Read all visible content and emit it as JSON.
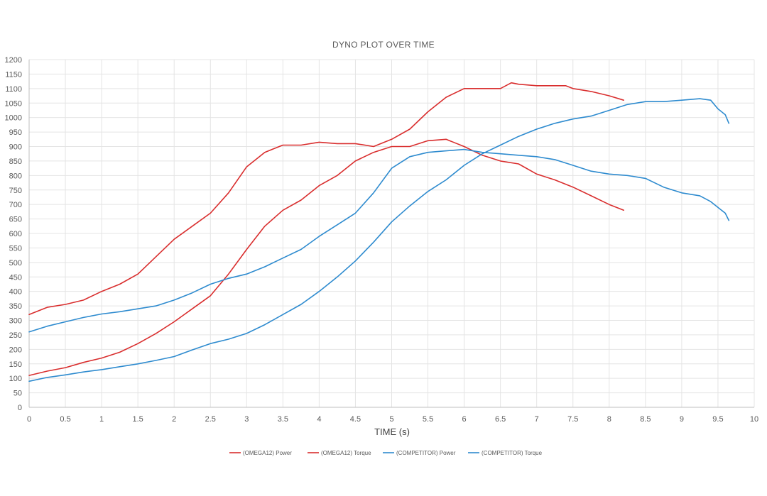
{
  "chart_data": {
    "type": "line",
    "title": "DYNO PLOT OVER TIME",
    "xlabel": "TIME (s)",
    "ylabel": "",
    "xlim": [
      0,
      10
    ],
    "ylim": [
      0,
      1200
    ],
    "x_ticks": [
      0,
      0.5,
      1,
      1.5,
      2,
      2.5,
      3,
      3.5,
      4,
      4.5,
      5,
      5.5,
      6,
      6.5,
      7,
      7.5,
      8,
      8.5,
      9,
      9.5,
      10
    ],
    "x_tick_labels": [
      "0",
      "0.5",
      "1",
      "1.5",
      "2",
      "2.5",
      "3",
      "3.5",
      "4",
      "4.5",
      "5",
      "5.5",
      "6",
      "6.5",
      "7",
      "7.5",
      "8",
      "8.5",
      "9",
      "9.5",
      "10"
    ],
    "y_ticks": [
      0,
      50,
      100,
      150,
      200,
      250,
      300,
      350,
      400,
      450,
      500,
      550,
      600,
      650,
      700,
      750,
      800,
      850,
      900,
      950,
      1000,
      1050,
      1100,
      1150,
      1200
    ],
    "y_tick_labels": [
      "0",
      "50",
      "100",
      "150",
      "200",
      "250",
      "300",
      "350",
      "400",
      "450",
      "500",
      "550",
      "600",
      "650",
      "700",
      "750",
      "800",
      "850",
      "900",
      "950",
      "1000",
      "1050",
      "1100",
      "1150",
      "1200"
    ],
    "grid": true,
    "legend_position": "bottom",
    "series": [
      {
        "name": "(OMEGA12) Power",
        "color": "#d92e2e",
        "x": [
          0,
          0.25,
          0.5,
          0.75,
          1,
          1.25,
          1.5,
          1.75,
          2,
          2.25,
          2.5,
          2.75,
          3,
          3.25,
          3.5,
          3.75,
          4,
          4.25,
          4.5,
          4.75,
          5,
          5.25,
          5.5,
          5.75,
          6,
          6.25,
          6.5,
          6.75,
          7,
          7.25,
          7.5,
          7.75,
          8,
          8.2
        ],
        "y": [
          110,
          125,
          137,
          155,
          170,
          190,
          220,
          255,
          295,
          340,
          385,
          460,
          545,
          625,
          680,
          715,
          765,
          800,
          850,
          880,
          900,
          900,
          920,
          925,
          900,
          870,
          850,
          840,
          805,
          785,
          760,
          730,
          700,
          680
        ]
      },
      {
        "name": "(OMEGA12) Torque",
        "color": "#d92e2e",
        "x": [
          0,
          0.25,
          0.5,
          0.75,
          1,
          1.25,
          1.5,
          1.75,
          2,
          2.25,
          2.5,
          2.75,
          3,
          3.25,
          3.5,
          3.75,
          4,
          4.25,
          4.5,
          4.75,
          5,
          5.25,
          5.5,
          5.75,
          6,
          6.25,
          6.5,
          6.65,
          6.75,
          7,
          7.25,
          7.4,
          7.5,
          7.75,
          8,
          8.2
        ],
        "y": [
          320,
          345,
          355,
          370,
          400,
          425,
          460,
          520,
          580,
          625,
          670,
          740,
          830,
          880,
          905,
          905,
          915,
          910,
          910,
          900,
          925,
          960,
          1020,
          1070,
          1100,
          1100,
          1100,
          1120,
          1115,
          1110,
          1110,
          1110,
          1100,
          1090,
          1075,
          1060
        ]
      },
      {
        "name": "(COMPETITOR) Power",
        "color": "#2e8bcf",
        "x": [
          0,
          0.25,
          0.5,
          0.75,
          1,
          1.25,
          1.5,
          1.75,
          2,
          2.25,
          2.5,
          2.75,
          3,
          3.25,
          3.5,
          3.75,
          4,
          4.25,
          4.5,
          4.75,
          5,
          5.25,
          5.5,
          5.75,
          6,
          6.25,
          6.5,
          6.75,
          7,
          7.25,
          7.5,
          7.75,
          8,
          8.25,
          8.5,
          8.75,
          9,
          9.25,
          9.4,
          9.5,
          9.6,
          9.65
        ],
        "y": [
          90,
          103,
          112,
          122,
          130,
          140,
          150,
          162,
          175,
          198,
          220,
          235,
          255,
          285,
          320,
          355,
          400,
          450,
          505,
          570,
          640,
          695,
          745,
          785,
          835,
          875,
          905,
          935,
          960,
          980,
          995,
          1005,
          1025,
          1045,
          1055,
          1055,
          1060,
          1065,
          1060,
          1030,
          1010,
          980
        ]
      },
      {
        "name": "(COMPETITOR) Torque",
        "color": "#2e8bcf",
        "x": [
          0,
          0.25,
          0.5,
          0.75,
          1,
          1.25,
          1.5,
          1.75,
          2,
          2.25,
          2.5,
          2.75,
          3,
          3.25,
          3.5,
          3.75,
          4,
          4.25,
          4.5,
          4.75,
          5,
          5.25,
          5.5,
          5.75,
          6,
          6.25,
          6.5,
          6.75,
          7,
          7.25,
          7.5,
          7.75,
          8,
          8.25,
          8.5,
          8.75,
          9,
          9.25,
          9.4,
          9.5,
          9.6,
          9.65
        ],
        "y": [
          260,
          280,
          295,
          310,
          322,
          330,
          340,
          350,
          370,
          395,
          425,
          445,
          460,
          485,
          515,
          545,
          590,
          630,
          670,
          740,
          825,
          865,
          880,
          885,
          890,
          880,
          875,
          870,
          865,
          855,
          835,
          815,
          805,
          800,
          790,
          760,
          740,
          730,
          710,
          690,
          670,
          645
        ]
      }
    ]
  }
}
